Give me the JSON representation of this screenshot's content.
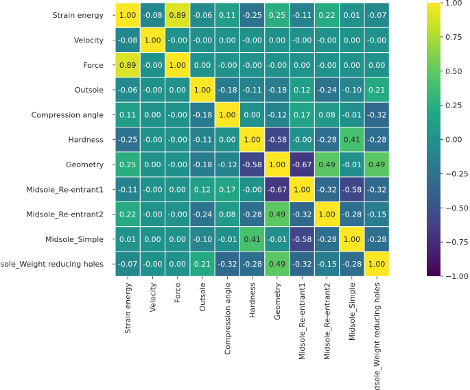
{
  "chart_data": {
    "type": "heatmap",
    "title": "",
    "xlabel": "",
    "ylabel": "",
    "colormap": "viridis",
    "vmin": -1.0,
    "vmax": 1.0,
    "cell_border_color": "#ffffff",
    "row_labels": [
      "Strain energy",
      "Velocity",
      "Force",
      "Outsole",
      "Compression angle",
      "Hardness",
      "Geometry",
      "Midsole_Re-entrant1",
      "Midsole_Re-entrant2",
      "Midsole_Simple",
      "Midsole_Weight reducing holes"
    ],
    "col_labels": [
      "Strain energy",
      "Velocity",
      "Force",
      "Outsole",
      "Compression angle",
      "Hardness",
      "Geometry",
      "Midsole_Re-entrant1",
      "Midsole_Re-entrant2",
      "Midsole_Simple",
      "Midsole_Weight reducing holes"
    ],
    "values": [
      [
        1.0,
        -0.08,
        0.89,
        -0.06,
        0.11,
        -0.25,
        0.25,
        -0.11,
        0.22,
        0.01,
        -0.07
      ],
      [
        -0.08,
        1.0,
        -0.0,
        -0.0,
        0.0,
        -0.0,
        0.0,
        -0.0,
        -0.0,
        0.0,
        -0.0
      ],
      [
        0.89,
        -0.0,
        1.0,
        0.0,
        -0.0,
        -0.0,
        -0.0,
        0.0,
        -0.0,
        0.0,
        0.0
      ],
      [
        -0.06,
        -0.0,
        0.0,
        1.0,
        -0.18,
        -0.11,
        -0.18,
        0.12,
        -0.24,
        -0.1,
        0.21
      ],
      [
        0.11,
        0.0,
        -0.0,
        -0.18,
        1.0,
        0.0,
        -0.12,
        0.17,
        0.08,
        -0.01,
        -0.32
      ],
      [
        -0.25,
        -0.0,
        -0.0,
        -0.11,
        0.0,
        1.0,
        -0.58,
        -0.0,
        -0.28,
        0.41,
        -0.28
      ],
      [
        0.25,
        0.0,
        -0.0,
        -0.18,
        -0.12,
        -0.58,
        1.0,
        -0.67,
        0.49,
        -0.01,
        0.49
      ],
      [
        -0.11,
        -0.0,
        0.0,
        0.12,
        0.17,
        -0.0,
        -0.67,
        1.0,
        -0.32,
        -0.58,
        -0.32
      ],
      [
        0.22,
        -0.0,
        -0.0,
        -0.24,
        0.08,
        -0.28,
        0.49,
        -0.32,
        1.0,
        -0.28,
        -0.15
      ],
      [
        0.01,
        0.0,
        0.0,
        -0.1,
        -0.01,
        0.41,
        -0.01,
        -0.58,
        -0.28,
        1.0,
        -0.28
      ],
      [
        -0.07,
        -0.0,
        0.0,
        0.21,
        -0.32,
        -0.28,
        0.49,
        -0.32,
        -0.15,
        -0.28,
        1.0
      ]
    ],
    "cell_labels": [
      [
        "1.00",
        "-0.08",
        "0.89",
        "-0.06",
        "0.11",
        "-0.25",
        "0.25",
        "-0.11",
        "0.22",
        "0.01",
        "-0.07"
      ],
      [
        "-0.08",
        "1.00",
        "-0.00",
        "-0.00",
        "0.00",
        "-0.00",
        "0.00",
        "-0.00",
        "-0.00",
        "0.00",
        "-0.00"
      ],
      [
        "0.89",
        "-0.00",
        "1.00",
        "0.00",
        "-0.00",
        "-0.00",
        "-0.00",
        "0.00",
        "-0.00",
        "0.00",
        "0.00"
      ],
      [
        "-0.06",
        "-0.00",
        "0.00",
        "1.00",
        "-0.18",
        "-0.11",
        "-0.18",
        "0.12",
        "-0.24",
        "-0.10",
        "0.21"
      ],
      [
        "0.11",
        "0.00",
        "-0.00",
        "-0.18",
        "1.00",
        "0.00",
        "-0.12",
        "0.17",
        "0.08",
        "-0.01",
        "-0.32"
      ],
      [
        "-0.25",
        "-0.00",
        "-0.00",
        "-0.11",
        "0.00",
        "1.00",
        "-0.58",
        "-0.00",
        "-0.28",
        "0.41",
        "-0.28"
      ],
      [
        "0.25",
        "0.00",
        "-0.00",
        "-0.18",
        "-0.12",
        "-0.58",
        "1.00",
        "-0.67",
        "0.49",
        "-0.01",
        "0.49"
      ],
      [
        "-0.11",
        "-0.00",
        "0.00",
        "0.12",
        "0.17",
        "-0.00",
        "-0.67",
        "1.00",
        "-0.32",
        "-0.58",
        "-0.32"
      ],
      [
        "0.22",
        "-0.00",
        "-0.00",
        "-0.24",
        "0.08",
        "-0.28",
        "0.49",
        "-0.32",
        "1.00",
        "-0.28",
        "-0.15"
      ],
      [
        "0.01",
        "0.00",
        "0.00",
        "-0.10",
        "-0.01",
        "0.41",
        "-0.01",
        "-0.58",
        "-0.28",
        "1.00",
        "-0.28"
      ],
      [
        "-0.07",
        "-0.00",
        "0.00",
        "0.21",
        "-0.32",
        "-0.28",
        "0.49",
        "-0.32",
        "-0.15",
        "-0.28",
        "1.00"
      ]
    ],
    "colorbar": {
      "ticks": [
        1.0,
        0.75,
        0.5,
        0.25,
        0.0,
        -0.25,
        -0.5,
        -0.75,
        -1.0
      ],
      "tick_labels": [
        "1.00",
        "0.75",
        "0.50",
        "0.25",
        "0.00",
        "−0.25",
        "−0.50",
        "−0.75",
        "−1.00"
      ]
    }
  }
}
